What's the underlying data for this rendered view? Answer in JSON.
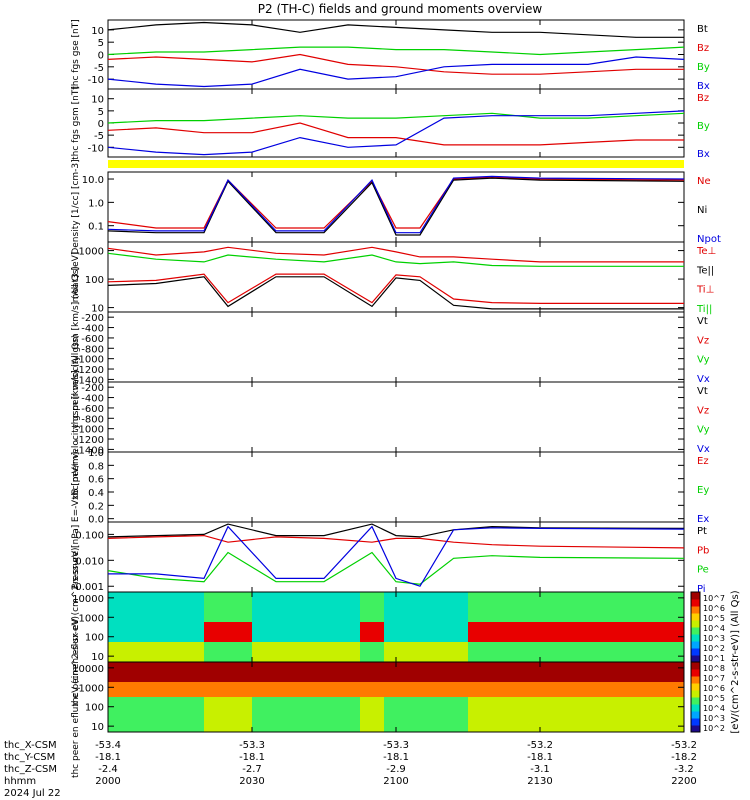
{
  "title": "P2 (TH-C) fields and ground moments overview",
  "colors": {
    "black": "#000000",
    "red": "#e00000",
    "green": "#00d000",
    "blue": "#0000e0",
    "yellow": "#ffff00"
  },
  "x_axis": {
    "tick_hhmm": [
      "2000",
      "2030",
      "2100",
      "2130",
      "2200"
    ],
    "rows": [
      {
        "label": "thc_X-CSM",
        "values": [
          "-53.4",
          "-53.3",
          "-53.3",
          "-53.2",
          "-53.2"
        ]
      },
      {
        "label": "thc_Y-CSM",
        "values": [
          "-18.1",
          "-18.1",
          "-18.1",
          "-18.1",
          "-18.2"
        ]
      },
      {
        "label": "thc_Z-CSM",
        "values": [
          "-2.4",
          "-2.7",
          "-2.9",
          "-3.1",
          "-3.2"
        ]
      },
      {
        "label": "hhmm",
        "values": [
          "2000",
          "2030",
          "2100",
          "2130",
          "2200"
        ]
      }
    ],
    "date": "2024 Jul 22"
  },
  "colorbar": {
    "label": "[eV/(cm^2-s-str-eV)] (All Qs)",
    "ticks": [
      "10^7",
      "10^6",
      "10^5",
      "10^4",
      "10^3",
      "10^2",
      "10^1"
    ],
    "ticks2": [
      "10^8",
      "10^7",
      "10^6",
      "10^5",
      "10^4",
      "10^3",
      "10^2"
    ]
  },
  "chart_data": [
    {
      "type": "line",
      "ylabel": "thc fgs gse [nT]",
      "yticks": [
        "10",
        "5",
        "0",
        "-5",
        "-10"
      ],
      "ylim": [
        -14,
        14
      ],
      "legend": [
        {
          "name": "Bt",
          "color": "#000000"
        },
        {
          "name": "Bz",
          "color": "#e00000"
        },
        {
          "name": "By",
          "color": "#00d000"
        },
        {
          "name": "Bx",
          "color": "#0000e0"
        }
      ],
      "x": [
        "2000",
        "2010",
        "2020",
        "2030",
        "2040",
        "2050",
        "2100",
        "2110",
        "2120",
        "2130",
        "2140",
        "2150",
        "2200"
      ],
      "series": [
        {
          "name": "Bt",
          "values": [
            10,
            12,
            13,
            12,
            9,
            12,
            11,
            10,
            9,
            9,
            8,
            7,
            7
          ]
        },
        {
          "name": "Bz",
          "values": [
            -2,
            -1,
            -2,
            -3,
            0,
            -4,
            -5,
            -7,
            -8,
            -8,
            -7,
            -6,
            -6
          ]
        },
        {
          "name": "By",
          "values": [
            0,
            1,
            1,
            2,
            3,
            3,
            2,
            2,
            1,
            0,
            1,
            2,
            3
          ]
        },
        {
          "name": "Bx",
          "values": [
            -10,
            -12,
            -13,
            -12,
            -6,
            -10,
            -9,
            -5,
            -4,
            -4,
            -4,
            -1,
            -2
          ]
        }
      ]
    },
    {
      "type": "line",
      "ylabel": "thc fgs gsm [nT]",
      "yticks": [
        "10",
        "5",
        "0",
        "-5",
        "-10"
      ],
      "ylim": [
        -14,
        14
      ],
      "legend": [
        {
          "name": "Bz",
          "color": "#e00000"
        },
        {
          "name": "By",
          "color": "#00d000"
        },
        {
          "name": "Bx",
          "color": "#0000e0"
        }
      ],
      "x": [
        "2000",
        "2010",
        "2020",
        "2030",
        "2040",
        "2050",
        "2100",
        "2110",
        "2120",
        "2130",
        "2140",
        "2150",
        "2200"
      ],
      "series": [
        {
          "name": "Bz",
          "values": [
            -3,
            -2,
            -4,
            -4,
            0,
            -6,
            -6,
            -9,
            -9,
            -9,
            -8,
            -7,
            -7
          ]
        },
        {
          "name": "By",
          "values": [
            0,
            1,
            1,
            2,
            3,
            2,
            2,
            3,
            4,
            2,
            2,
            3,
            4
          ]
        },
        {
          "name": "Bx",
          "values": [
            -10,
            -12,
            -13,
            -12,
            -6,
            -10,
            -9,
            2,
            3,
            3,
            3,
            4,
            5
          ]
        }
      ]
    },
    {
      "type": "line",
      "ylabel": "Density [1/cc] [cm-3]",
      "yticks": [
        "10.0",
        "1.0",
        "0.1"
      ],
      "yscale": "log",
      "ylim": [
        0.02,
        20
      ],
      "legend": [
        {
          "name": "Ne",
          "color": "#e00000"
        },
        {
          "name": "Ni",
          "color": "#000000"
        },
        {
          "name": "Npot",
          "color": "#0000e0"
        }
      ],
      "x": [
        "2000",
        "2010",
        "2020",
        "2025",
        "2035",
        "2045",
        "2055",
        "2100",
        "2105",
        "2112",
        "2120",
        "2130",
        "2200"
      ],
      "series": [
        {
          "name": "Ne",
          "values": [
            0.15,
            0.08,
            0.08,
            9,
            0.08,
            0.08,
            8,
            0.08,
            0.08,
            10,
            12,
            10,
            9
          ]
        },
        {
          "name": "Ni",
          "values": [
            0.06,
            0.05,
            0.05,
            8,
            0.05,
            0.05,
            7,
            0.04,
            0.04,
            9,
            11,
            9,
            8
          ]
        },
        {
          "name": "Npot",
          "values": [
            0.07,
            0.06,
            0.06,
            9,
            0.06,
            0.06,
            9,
            0.05,
            0.05,
            11,
            13,
            11,
            10
          ]
        }
      ]
    },
    {
      "type": "line",
      "ylabel": "moat3 [eV]",
      "yticks": [
        "1000",
        "100",
        "10"
      ],
      "yscale": "log",
      "ylim": [
        7,
        2000
      ],
      "legend": [
        {
          "name": "Te⊥",
          "color": "#e00000"
        },
        {
          "name": "Te||",
          "color": "#000000"
        },
        {
          "name": "Ti⊥",
          "color": "#e00000"
        },
        {
          "name": "Ti||",
          "color": "#00d000"
        }
      ],
      "x": [
        "2000",
        "2010",
        "2020",
        "2025",
        "2035",
        "2045",
        "2055",
        "2100",
        "2105",
        "2112",
        "2120",
        "2130",
        "2200"
      ],
      "series": [
        {
          "name": "Te⊥",
          "values": [
            80,
            90,
            150,
            15,
            150,
            150,
            15,
            140,
            120,
            20,
            15,
            14,
            14
          ]
        },
        {
          "name": "Te||",
          "values": [
            60,
            70,
            120,
            11,
            120,
            120,
            11,
            110,
            90,
            12,
            9,
            9,
            9
          ]
        },
        {
          "name": "Ti⊥",
          "values": [
            1200,
            700,
            900,
            1300,
            800,
            700,
            1300,
            900,
            600,
            600,
            500,
            400,
            400
          ]
        },
        {
          "name": "Ti||",
          "values": [
            800,
            500,
            400,
            700,
            500,
            400,
            700,
            400,
            350,
            400,
            300,
            280,
            280
          ]
        }
      ]
    },
    {
      "type": "line",
      "ylabel": "thc peir velocity gsm [km/s] (All Qs)",
      "yticks": [
        "-200",
        "-400",
        "-600",
        "-800",
        "-1000",
        "-1200",
        "-1400"
      ],
      "ylim": [
        -1450,
        -100
      ],
      "legend": [
        {
          "name": "Vt",
          "color": "#000000"
        },
        {
          "name": "Vz",
          "color": "#e00000"
        },
        {
          "name": "Vy",
          "color": "#00d000"
        },
        {
          "name": "Vx",
          "color": "#0000e0"
        }
      ]
    },
    {
      "type": "line",
      "ylabel": "thc peer velocity gsm [km/s] (All Qs)",
      "yticks": [
        "-200",
        "-400",
        "-600",
        "-800",
        "-1000",
        "-1200",
        "-1400"
      ],
      "ylim": [
        -1450,
        -100
      ],
      "legend": [
        {
          "name": "Vt",
          "color": "#000000"
        },
        {
          "name": "Vz",
          "color": "#e00000"
        },
        {
          "name": "Vy",
          "color": "#00d000"
        },
        {
          "name": "Vx",
          "color": "#0000e0"
        }
      ]
    },
    {
      "type": "line",
      "ylabel": "E=-VxB [mV/m]",
      "yticks": [
        "1.0",
        "0.8",
        "0.6",
        "0.4",
        "0.2",
        "0.0"
      ],
      "ylim": [
        -0.05,
        1.0
      ],
      "legend": [
        {
          "name": "Ez",
          "color": "#e00000"
        },
        {
          "name": "Ey",
          "color": "#00d000"
        },
        {
          "name": "Ex",
          "color": "#0000e0"
        }
      ]
    },
    {
      "type": "line",
      "ylabel": "Pressure [nPa]",
      "yticks": [
        "0.100",
        "0.010",
        "0.001"
      ],
      "yscale": "log",
      "ylim": [
        0.0006,
        0.3
      ],
      "legend": [
        {
          "name": "Pt",
          "color": "#000000"
        },
        {
          "name": "Pb",
          "color": "#e00000"
        },
        {
          "name": "Pe",
          "color": "#00d000"
        },
        {
          "name": "Pi",
          "color": "#0000e0"
        }
      ],
      "x": [
        "2000",
        "2010",
        "2020",
        "2025",
        "2035",
        "2045",
        "2055",
        "2100",
        "2105",
        "2112",
        "2120",
        "2130",
        "2200"
      ],
      "series": [
        {
          "name": "Pt",
          "values": [
            0.08,
            0.09,
            0.1,
            0.25,
            0.09,
            0.09,
            0.25,
            0.09,
            0.08,
            0.15,
            0.2,
            0.18,
            0.17
          ]
        },
        {
          "name": "Pb",
          "values": [
            0.07,
            0.08,
            0.09,
            0.05,
            0.08,
            0.07,
            0.05,
            0.07,
            0.07,
            0.05,
            0.04,
            0.035,
            0.03
          ]
        },
        {
          "name": "Pe",
          "values": [
            0.004,
            0.002,
            0.0015,
            0.02,
            0.0015,
            0.0015,
            0.02,
            0.0015,
            0.0012,
            0.012,
            0.015,
            0.013,
            0.012
          ]
        },
        {
          "name": "Pi",
          "values": [
            0.003,
            0.003,
            0.002,
            0.2,
            0.002,
            0.002,
            0.2,
            0.002,
            0.001,
            0.15,
            0.18,
            0.17,
            0.16
          ]
        }
      ]
    },
    {
      "type": "heatmap",
      "ylabel": "thc peir en eflux eV (cm^2-s-sr-eV)",
      "yticks": [
        "10000",
        "1000",
        "100",
        "10"
      ],
      "yscale": "log",
      "ylim": [
        5,
        20000
      ]
    },
    {
      "type": "heatmap",
      "ylabel": "thc peer en eflux eV (cm^2-s-sr-eV)",
      "yticks": [
        "10000",
        "1000",
        "100",
        "10"
      ],
      "yscale": "log",
      "ylim": [
        5,
        20000
      ]
    }
  ]
}
